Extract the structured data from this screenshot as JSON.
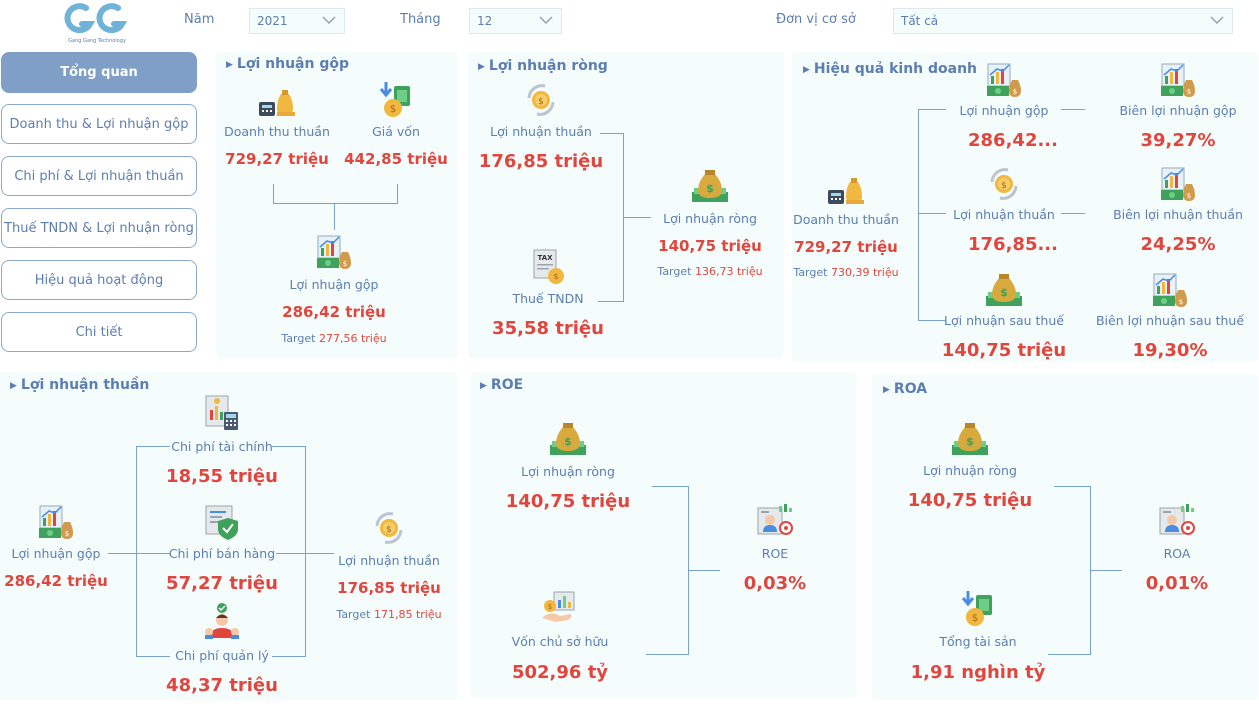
{
  "logo": {
    "text": "Gang Gang Technology"
  },
  "filters": {
    "year_label": "Năm",
    "year_value": "2021",
    "month_label": "Tháng",
    "month_value": "12",
    "unit_label": "Đơn vị cơ sở",
    "unit_value": "Tất cả"
  },
  "nav": {
    "items": [
      "Tổng quan",
      "Doanh thu & Lợi nhuận gộp",
      "Chi phí & Lợi nhuận thuần",
      "Thuế TNDN & Lợi nhuận ròng",
      "Hiệu quả hoạt động",
      "Chi tiết"
    ]
  },
  "gross": {
    "title": "Lợi nhuận gộp",
    "revenue_label": "Doanh thu thuần",
    "revenue_value": "729,27 triệu",
    "cogs_label": "Giá vốn",
    "cogs_value": "442,85 triệu",
    "profit_label": "Lợi nhuận gộp",
    "profit_value": "286,42 triệu",
    "target_label": "Target",
    "target_value": "277,56 triệu"
  },
  "net_income": {
    "title": "Lợi nhuận ròng",
    "operating_label": "Lợi nhuận thuần",
    "operating_value": "176,85 triệu",
    "tax_label": "Thuế TNDN",
    "tax_value": "35,58 triệu",
    "net_label": "Lợi nhuận ròng",
    "net_value": "140,75 triệu",
    "target_label": "Target",
    "target_value": "136,73 triệu"
  },
  "efficiency": {
    "title": "Hiệu quả kinh doanh",
    "revenue_label": "Doanh thu thuần",
    "revenue_value": "729,27 triệu",
    "target_label": "Target",
    "target_value": "730,39 triệu",
    "gross_label": "Lợi nhuận gộp",
    "gross_value": "286,42...",
    "operating_label": "Lợi nhuận thuần",
    "operating_value": "176,85...",
    "after_tax_label": "Lợi nhuận sau thuế",
    "after_tax_value": "140,75 triệu",
    "gross_margin_label": "Biên lợi nhuận gộp",
    "gross_margin_value": "39,27%",
    "operating_margin_label": "Biên lợi nhuận thuần",
    "operating_margin_value": "24,25%",
    "net_margin_label": "Biên lợi nhuận sau thuế",
    "net_margin_value": "19,30%"
  },
  "operating": {
    "title": "Lợi nhuận thuần",
    "gross_label": "Lợi nhuận gộp",
    "gross_value": "286,42 triệu",
    "finance_label": "Chi phí tài chính",
    "finance_value": "18,55 triệu",
    "selling_label": "Chi phí bán hàng",
    "selling_value": "57,27 triệu",
    "admin_label": "Chi phí quản lý",
    "admin_value": "48,37 triệu",
    "net_label": "Lợi nhuận thuần",
    "net_value": "176,85 triệu",
    "target_label": "Target",
    "target_value": "171,85 triệu"
  },
  "roe": {
    "title": "ROE",
    "net_label": "Lợi nhuận ròng",
    "net_value": "140,75 triệu",
    "equity_label": "Vốn chủ sở hữu",
    "equity_value": "502,96 tỷ",
    "result_label": "ROE",
    "result_value": "0,03%"
  },
  "roa": {
    "title": "ROA",
    "net_label": "Lợi nhuận ròng",
    "net_value": "140,75 triệu",
    "assets_label": "Tổng tài sản",
    "assets_value": "1,91 nghìn tỷ",
    "result_label": "ROA",
    "result_value": "0,01%"
  },
  "colors": {
    "accent": "#5d7eb0",
    "value": "#e0463e",
    "card": "#f4fcfc",
    "nav_active": "#7f9fc6"
  }
}
